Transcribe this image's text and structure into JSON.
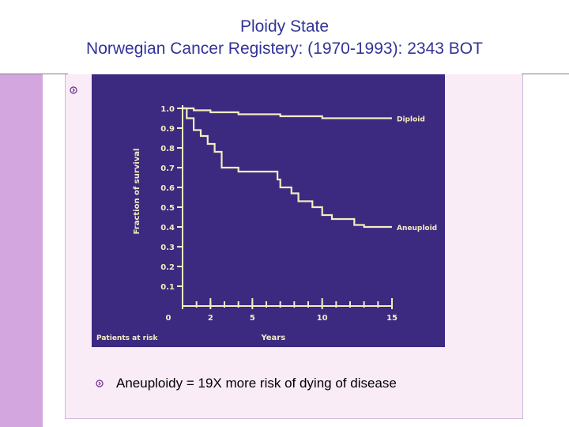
{
  "slide": {
    "title_line1": "Ploidy State",
    "title_line2": "Norwegian Cancer Registery: (1970-1993): 2343 BOT",
    "bullet_text": "Aneuploidy = 19X more risk of dying of disease"
  },
  "colors": {
    "title": "#333399",
    "sidebar": "#d4a6e0",
    "panel": "#f9ecf6",
    "photo_bg": "#3b2a80",
    "curve": "#f4ecc0"
  },
  "chart_data": {
    "type": "line",
    "ylabel": "Fraction of survival",
    "xlabel": "Years",
    "footer_label": "Patients at risk",
    "xlim": [
      0,
      15
    ],
    "ylim": [
      0,
      1.0
    ],
    "x_ticks": [
      "0",
      "2",
      "5",
      "10",
      "15"
    ],
    "x_tick_values": [
      0,
      2,
      5,
      10,
      15
    ],
    "y_ticks": [
      "1.0",
      "0.9",
      "0.8",
      "0.7",
      "0.6",
      "0.5",
      "0.4",
      "0.3",
      "0.2",
      "0.1"
    ],
    "y_tick_values": [
      1.0,
      0.9,
      0.8,
      0.7,
      0.6,
      0.5,
      0.4,
      0.3,
      0.2,
      0.1
    ],
    "series": [
      {
        "name": "Diploid",
        "x": [
          0,
          0.8,
          0.8,
          2,
          2,
          4,
          4,
          7,
          7,
          10,
          10,
          15
        ],
        "y": [
          1.0,
          1.0,
          0.99,
          0.99,
          0.98,
          0.98,
          0.97,
          0.97,
          0.96,
          0.96,
          0.95,
          0.95
        ]
      },
      {
        "name": "Aneuploid",
        "x": [
          0,
          0.3,
          0.3,
          0.8,
          0.8,
          1.3,
          1.3,
          1.8,
          1.8,
          2.3,
          2.3,
          2.8,
          2.8,
          4,
          4,
          6.8,
          6.8,
          7,
          7,
          7.8,
          7.8,
          8.3,
          8.3,
          9.3,
          9.3,
          10,
          10,
          10.7,
          10.7,
          12.3,
          12.3,
          13,
          13,
          15
        ],
        "y": [
          1.0,
          1.0,
          0.95,
          0.95,
          0.89,
          0.89,
          0.86,
          0.86,
          0.82,
          0.82,
          0.78,
          0.78,
          0.7,
          0.7,
          0.68,
          0.68,
          0.64,
          0.64,
          0.6,
          0.6,
          0.57,
          0.57,
          0.53,
          0.53,
          0.5,
          0.5,
          0.46,
          0.46,
          0.44,
          0.44,
          0.41,
          0.41,
          0.4,
          0.4
        ]
      }
    ]
  }
}
